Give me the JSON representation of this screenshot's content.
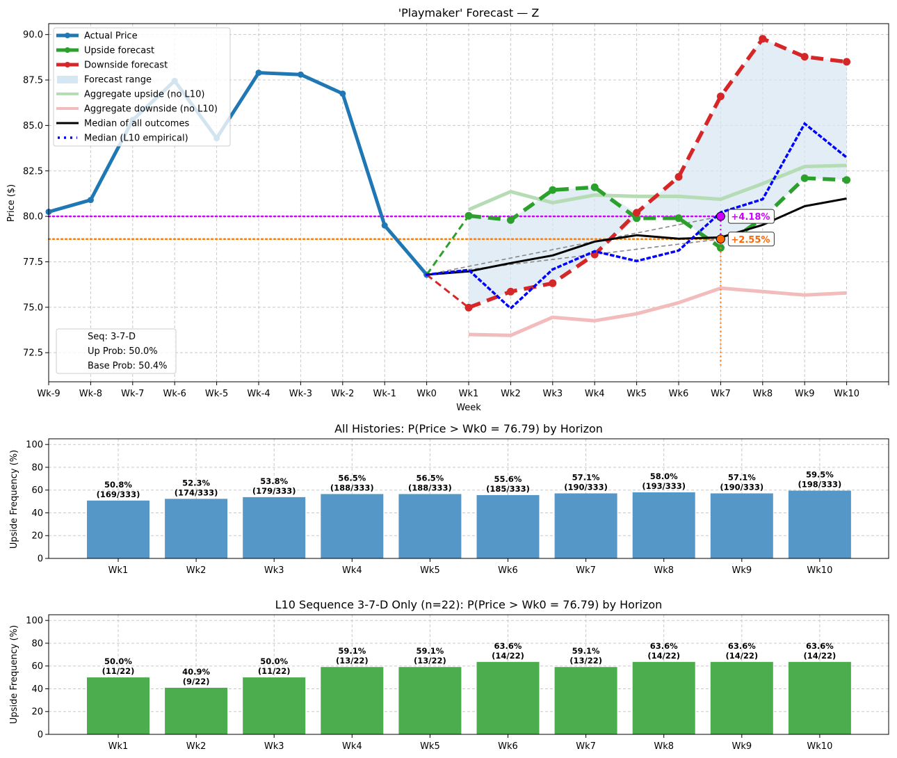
{
  "chart_data": [
    {
      "type": "line",
      "title": "'Playmaker' Forecast — Z",
      "xlabel": "Week",
      "ylabel": "Price ($)",
      "ylim": [
        70.9,
        90.6
      ],
      "yticks": [
        72.5,
        75.0,
        77.5,
        80.0,
        82.5,
        85.0,
        87.5,
        90.0
      ],
      "ytick_labels": [
        "72.5",
        "75.0",
        "77.5",
        "80.0",
        "82.5",
        "85.0",
        "87.5",
        "90.0"
      ],
      "x": [
        "Wk-9",
        "Wk-8",
        "Wk-7",
        "Wk-6",
        "Wk-5",
        "Wk-4",
        "Wk-3",
        "Wk-2",
        "Wk-1",
        "Wk0",
        "Wk1",
        "Wk2",
        "Wk3",
        "Wk4",
        "Wk5",
        "Wk6",
        "Wk7",
        "Wk8",
        "Wk9",
        "Wk10"
      ],
      "grid": true,
      "legend_position": "top-left",
      "series": [
        {
          "name": "Actual Price",
          "color": "#1f77b4",
          "style": "solid-marker",
          "x_start": "Wk-9",
          "values": [
            80.25,
            80.9,
            85.3,
            87.45,
            84.3,
            87.9,
            87.8,
            86.75,
            79.5,
            76.79
          ]
        },
        {
          "name": "Upside forecast",
          "color": "#2ca02c",
          "style": "dashed-marker",
          "x_start": "Wk0",
          "values": [
            76.79,
            80.03,
            79.8,
            81.45,
            81.6,
            79.9,
            79.9,
            78.27,
            79.9,
            82.1,
            82.0
          ]
        },
        {
          "name": "Downside forecast",
          "color": "#d62728",
          "style": "dashed-marker",
          "x_start": "Wk0",
          "values": [
            76.79,
            74.98,
            75.86,
            76.32,
            77.9,
            80.2,
            82.17,
            86.6,
            89.77,
            88.78,
            88.5
          ]
        },
        {
          "name": "Forecast range",
          "color": "#d6e6f2",
          "style": "fill"
        },
        {
          "name": "Aggregate upside (no L10)",
          "color": "#b5dcb5",
          "style": "solid-light",
          "x_start": "Wk1",
          "values": [
            80.37,
            81.36,
            80.75,
            81.17,
            81.1,
            81.1,
            80.94,
            81.8,
            82.74,
            82.8
          ]
        },
        {
          "name": "Aggregate downside (no L10)",
          "color": "#f2bcbd",
          "style": "solid-light",
          "x_start": "Wk1",
          "values": [
            73.5,
            73.45,
            74.45,
            74.26,
            74.64,
            75.25,
            76.05,
            75.86,
            75.67,
            75.79
          ]
        },
        {
          "name": "Median of all outcomes",
          "color": "#000000",
          "style": "solid",
          "x_start": "Wk0",
          "values": [
            76.79,
            76.97,
            77.43,
            77.85,
            78.61,
            78.96,
            78.77,
            78.84,
            79.53,
            80.56,
            80.98
          ]
        },
        {
          "name": "Median (L10 empirical)",
          "color": "#0000ff",
          "style": "dotted",
          "x_start": "Wk0",
          "values": [
            76.79,
            77.05,
            74.94,
            77.08,
            78.08,
            77.54,
            78.12,
            80.22,
            80.94,
            85.1,
            83.24
          ]
        }
      ],
      "reference_lines": [
        {
          "name": "target-upside",
          "value": 80.0,
          "color": "#cc00ff"
        },
        {
          "name": "target-median",
          "value": 78.75,
          "color": "#ff7f0e"
        }
      ],
      "annotations": [
        {
          "text": "+4.18%",
          "x": "Wk7",
          "y": 80.0,
          "color": "#cc00ff"
        },
        {
          "text": "+2.55%",
          "x": "Wk7",
          "y": 78.75,
          "color": "#ff6600"
        }
      ],
      "stats_box": [
        "Seq: 3-7-D",
        "Up Prob: 50.0%",
        "Base Prob: 50.4%"
      ]
    },
    {
      "type": "bar",
      "title": "All Histories: P(Price > Wk0 = 76.79) by Horizon",
      "xlabel": "",
      "ylabel": "Upside Frequency (%)",
      "ylim": [
        0,
        105
      ],
      "yticks": [
        0,
        20,
        40,
        60,
        80,
        100
      ],
      "color": "#5598c8",
      "categories": [
        "Wk1",
        "Wk2",
        "Wk3",
        "Wk4",
        "Wk5",
        "Wk6",
        "Wk7",
        "Wk8",
        "Wk9",
        "Wk10"
      ],
      "values": [
        50.8,
        52.3,
        53.8,
        56.5,
        56.5,
        55.6,
        57.1,
        58.0,
        57.1,
        59.5
      ],
      "labels": [
        "50.8%",
        "52.3%",
        "53.8%",
        "56.5%",
        "56.5%",
        "55.6%",
        "57.1%",
        "58.0%",
        "57.1%",
        "59.5%"
      ],
      "counts": [
        "(169/333)",
        "(174/333)",
        "(179/333)",
        "(188/333)",
        "(188/333)",
        "(185/333)",
        "(190/333)",
        "(193/333)",
        "(190/333)",
        "(198/333)"
      ],
      "grid": true
    },
    {
      "type": "bar",
      "title": "L10 Sequence 3-7-D Only (n=22): P(Price > Wk0 = 76.79) by Horizon",
      "xlabel": "",
      "ylabel": "Upside Frequency (%)",
      "ylim": [
        0,
        105
      ],
      "yticks": [
        0,
        20,
        40,
        60,
        80,
        100
      ],
      "color": "#4cad4f",
      "categories": [
        "Wk1",
        "Wk2",
        "Wk3",
        "Wk4",
        "Wk5",
        "Wk6",
        "Wk7",
        "Wk8",
        "Wk9",
        "Wk10"
      ],
      "values": [
        50.0,
        40.9,
        50.0,
        59.1,
        59.1,
        63.6,
        59.1,
        63.6,
        63.6,
        63.6
      ],
      "labels": [
        "50.0%",
        "40.9%",
        "50.0%",
        "59.1%",
        "59.1%",
        "63.6%",
        "59.1%",
        "63.6%",
        "63.6%",
        "63.6%"
      ],
      "counts": [
        "(11/22)",
        "(9/22)",
        "(11/22)",
        "(13/22)",
        "(13/22)",
        "(14/22)",
        "(13/22)",
        "(14/22)",
        "(14/22)",
        "(14/22)"
      ],
      "grid": true
    }
  ]
}
